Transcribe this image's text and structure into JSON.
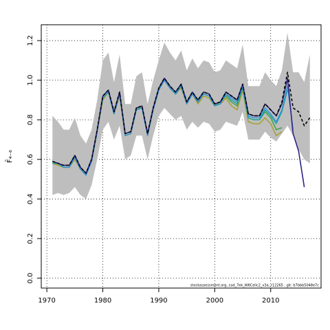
{
  "chart_data": {
    "type": "line",
    "ylabel": "F̄₄₋₆",
    "footnote": "stockassessment.org, cod_7ek_WKCelic2_v3a, r12265 , git: b7bbb5048e7c",
    "xlim": [
      1969,
      2019
    ],
    "ylim": [
      -0.05,
      1.28
    ],
    "xticks": [
      1970,
      1980,
      1990,
      2000,
      2010
    ],
    "yticks": [
      0.0,
      0.2,
      0.4,
      0.6,
      0.8,
      1.0,
      1.2
    ],
    "grid": true,
    "band": {
      "x": [
        1971,
        1972,
        1973,
        1974,
        1975,
        1976,
        1977,
        1978,
        1979,
        1980,
        1981,
        1982,
        1983,
        1984,
        1985,
        1986,
        1987,
        1988,
        1989,
        1990,
        1991,
        1992,
        1993,
        1994,
        1995,
        1996,
        1997,
        1998,
        1999,
        2000,
        2001,
        2002,
        2003,
        2004,
        2005,
        2006,
        2007,
        2008,
        2009,
        2010,
        2011,
        2012,
        2013,
        2014,
        2015,
        2016,
        2017
      ],
      "upper": [
        0.82,
        0.79,
        0.75,
        0.75,
        0.81,
        0.72,
        0.68,
        0.75,
        0.9,
        1.1,
        1.14,
        0.99,
        1.13,
        0.88,
        0.88,
        1.02,
        1.04,
        0.88,
        1.0,
        1.1,
        1.19,
        1.14,
        1.1,
        1.15,
        1.05,
        1.11,
        1.06,
        1.1,
        1.09,
        1.04,
        1.05,
        1.1,
        1.08,
        1.06,
        1.18,
        0.97,
        0.97,
        0.97,
        1.04,
        1.0,
        0.97,
        1.05,
        1.24,
        1.04,
        1.04,
        0.99,
        1.13
      ],
      "lower": [
        0.42,
        0.43,
        0.42,
        0.43,
        0.46,
        0.42,
        0.4,
        0.47,
        0.6,
        0.75,
        0.79,
        0.7,
        0.77,
        0.6,
        0.62,
        0.72,
        0.72,
        0.6,
        0.72,
        0.82,
        0.86,
        0.83,
        0.8,
        0.82,
        0.75,
        0.79,
        0.76,
        0.79,
        0.78,
        0.74,
        0.75,
        0.79,
        0.78,
        0.77,
        0.84,
        0.7,
        0.7,
        0.7,
        0.74,
        0.71,
        0.69,
        0.73,
        0.77,
        0.72,
        0.65,
        0.6,
        0.58
      ]
    },
    "series": [
      {
        "color": "#000000",
        "dash": "4,3",
        "width": 1.6,
        "x": [
          1971,
          1972,
          1973,
          1974,
          1975,
          1976,
          1977,
          1978,
          1979,
          1980,
          1981,
          1982,
          1983,
          1984,
          1985,
          1986,
          1987,
          1988,
          1989,
          1990,
          1991,
          1992,
          1993,
          1994,
          1995,
          1996,
          1997,
          1998,
          1999,
          2000,
          2001,
          2002,
          2003,
          2004,
          2005,
          2006,
          2007,
          2008,
          2009,
          2010,
          2011,
          2012,
          2013,
          2014,
          2015,
          2016,
          2017
        ],
        "values": [
          0.59,
          0.58,
          0.57,
          0.57,
          0.62,
          0.56,
          0.53,
          0.6,
          0.75,
          0.92,
          0.95,
          0.84,
          0.94,
          0.73,
          0.74,
          0.86,
          0.87,
          0.73,
          0.86,
          0.96,
          1.01,
          0.97,
          0.94,
          0.98,
          0.89,
          0.94,
          0.9,
          0.94,
          0.93,
          0.88,
          0.89,
          0.94,
          0.92,
          0.9,
          0.98,
          0.83,
          0.82,
          0.82,
          0.88,
          0.85,
          0.82,
          0.89,
          1.04,
          0.86,
          0.84,
          0.77,
          0.81
        ]
      },
      {
        "color": "#2c2484",
        "dash": "",
        "width": 1.6,
        "x": [
          1971,
          1972,
          1973,
          1974,
          1975,
          1976,
          1977,
          1978,
          1979,
          1980,
          1981,
          1982,
          1983,
          1984,
          1985,
          1986,
          1987,
          1988,
          1989,
          1990,
          1991,
          1992,
          1993,
          1994,
          1995,
          1996,
          1997,
          1998,
          1999,
          2000,
          2001,
          2002,
          2003,
          2004,
          2005,
          2006,
          2007,
          2008,
          2009,
          2010,
          2011,
          2012,
          2013,
          2014,
          2015,
          2016
        ],
        "values": [
          0.59,
          0.58,
          0.57,
          0.57,
          0.62,
          0.56,
          0.53,
          0.6,
          0.75,
          0.92,
          0.95,
          0.84,
          0.94,
          0.73,
          0.74,
          0.86,
          0.87,
          0.73,
          0.86,
          0.96,
          1.01,
          0.97,
          0.94,
          0.98,
          0.89,
          0.94,
          0.9,
          0.94,
          0.93,
          0.88,
          0.89,
          0.94,
          0.92,
          0.9,
          0.98,
          0.83,
          0.82,
          0.82,
          0.88,
          0.85,
          0.82,
          0.88,
          1.01,
          0.73,
          0.64,
          0.46
        ]
      },
      {
        "color": "#2b8fd6",
        "dash": "",
        "width": 1.3,
        "x": [
          1971,
          1972,
          1973,
          1974,
          1975,
          1976,
          1977,
          1978,
          1979,
          1980,
          1981,
          1982,
          1983,
          1984,
          1985,
          1986,
          1987,
          1988,
          1989,
          1990,
          1991,
          1992,
          1993,
          1994,
          1995,
          1996,
          1997,
          1998,
          1999,
          2000,
          2001,
          2002,
          2003,
          2004,
          2005,
          2006,
          2007,
          2008,
          2009,
          2010,
          2011,
          2012,
          2013,
          2014
        ],
        "values": [
          0.59,
          0.58,
          0.56,
          0.56,
          0.61,
          0.55,
          0.52,
          0.59,
          0.74,
          0.91,
          0.94,
          0.83,
          0.93,
          0.72,
          0.73,
          0.85,
          0.86,
          0.72,
          0.85,
          0.95,
          1.0,
          0.96,
          0.93,
          0.97,
          0.88,
          0.93,
          0.89,
          0.93,
          0.92,
          0.87,
          0.88,
          0.93,
          0.91,
          0.89,
          0.97,
          0.82,
          0.81,
          0.81,
          0.86,
          0.83,
          0.79,
          0.85,
          0.97,
          0.75
        ]
      },
      {
        "color": "#16a3a3",
        "dash": "",
        "width": 1.3,
        "x": [
          1971,
          1972,
          1973,
          1974,
          1975,
          1976,
          1977,
          1978,
          1979,
          1980,
          1981,
          1982,
          1983,
          1984,
          1985,
          1986,
          1987,
          1988,
          1989,
          1990,
          1991,
          1992,
          1993,
          1994,
          1995,
          1996,
          1997,
          1998,
          1999,
          2000,
          2001,
          2002,
          2003,
          2004,
          2005,
          2006,
          2007,
          2008,
          2009,
          2010,
          2011,
          2012,
          2013
        ],
        "values": [
          0.58,
          0.58,
          0.56,
          0.56,
          0.61,
          0.55,
          0.52,
          0.59,
          0.74,
          0.91,
          0.94,
          0.83,
          0.93,
          0.72,
          0.73,
          0.85,
          0.86,
          0.72,
          0.85,
          0.95,
          1.0,
          0.96,
          0.93,
          0.97,
          0.88,
          0.93,
          0.89,
          0.93,
          0.92,
          0.87,
          0.88,
          0.93,
          0.9,
          0.88,
          0.96,
          0.81,
          0.8,
          0.8,
          0.85,
          0.82,
          0.78,
          0.84,
          0.95
        ]
      },
      {
        "color": "#3ea04a",
        "dash": "",
        "width": 1.5,
        "x": [
          1971,
          1972,
          1973,
          1974,
          1975,
          1976,
          1977,
          1978,
          1979,
          1980,
          1981,
          1982,
          1983,
          1984,
          1985,
          1986,
          1987,
          1988,
          1989,
          1990,
          1991,
          1992,
          1993,
          1994,
          1995,
          1996,
          1997,
          1998,
          1999,
          2000,
          2001,
          2002,
          2003,
          2004,
          2005,
          2006,
          2007,
          2008,
          2009,
          2010,
          2011,
          2012
        ],
        "values": [
          0.58,
          0.58,
          0.56,
          0.56,
          0.61,
          0.56,
          0.53,
          0.6,
          0.75,
          0.91,
          0.94,
          0.83,
          0.93,
          0.73,
          0.74,
          0.86,
          0.86,
          0.73,
          0.85,
          0.95,
          1.01,
          0.96,
          0.93,
          0.97,
          0.89,
          0.93,
          0.89,
          0.93,
          0.92,
          0.87,
          0.89,
          0.92,
          0.89,
          0.87,
          0.96,
          0.81,
          0.8,
          0.8,
          0.84,
          0.81,
          0.75,
          0.76
        ]
      },
      {
        "color": "#a6a02a",
        "dash": "",
        "width": 1.5,
        "x": [
          1971,
          1972,
          1973,
          1974,
          1975,
          1976,
          1977,
          1978,
          1979,
          1980,
          1981,
          1982,
          1983,
          1984,
          1985,
          1986,
          1987,
          1988,
          1989,
          1990,
          1991,
          1992,
          1993,
          1994,
          1995,
          1996,
          1997,
          1998,
          1999,
          2000,
          2001,
          2002,
          2003,
          2004,
          2005,
          2006,
          2007,
          2008,
          2009,
          2010,
          2011,
          2012
        ],
        "values": [
          0.58,
          0.57,
          0.56,
          0.56,
          0.6,
          0.55,
          0.53,
          0.59,
          0.74,
          0.9,
          0.94,
          0.83,
          0.92,
          0.72,
          0.73,
          0.85,
          0.86,
          0.72,
          0.85,
          0.95,
          1.0,
          0.96,
          0.93,
          0.96,
          0.88,
          0.93,
          0.88,
          0.92,
          0.91,
          0.87,
          0.88,
          0.91,
          0.87,
          0.85,
          0.95,
          0.79,
          0.78,
          0.78,
          0.81,
          0.78,
          0.72,
          0.74
        ]
      }
    ]
  }
}
